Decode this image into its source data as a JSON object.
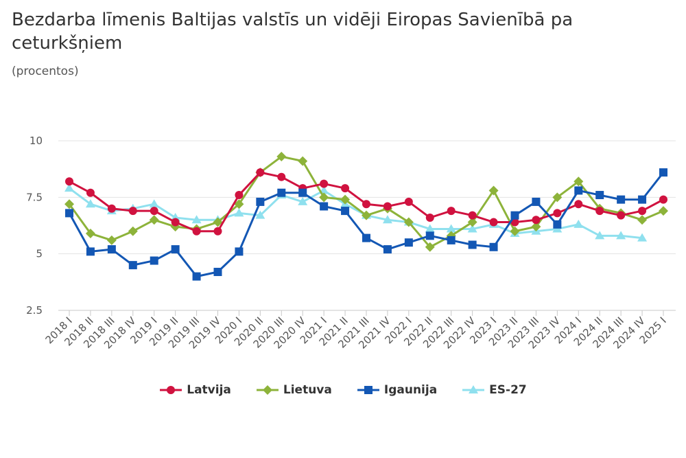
{
  "title": "Bezdarba līmenis Baltijas valstīs un vidēji Eiropas Savienībā pa ceturkšņiem",
  "subtitle": "(procentos)",
  "chart_data": {
    "type": "line",
    "title": "Bezdarba līmenis Baltijas valstīs un vidēji Eiropas Savienībā pa ceturkšņiem",
    "subtitle": "(procentos)",
    "categories": [
      "2018 I",
      "2018 II",
      "2018 III",
      "2018 IV",
      "2019 I",
      "2019 II",
      "2019 III",
      "2019 IV",
      "2020 I",
      "2020 II",
      "2020 III",
      "2020 IV",
      "2021 I",
      "2021 II",
      "2021 III",
      "2021 IV",
      "2022 I",
      "2022 II",
      "2022 III",
      "2022 IV",
      "2023 I",
      "2023 II",
      "2023 III",
      "2023 IV",
      "2024 I",
      "2024 II",
      "2024 III",
      "2024 IV",
      "2025 I"
    ],
    "yticks": [
      "2.5",
      "5",
      "7.5",
      "10"
    ],
    "ylim": [
      2.5,
      10
    ],
    "grid": true,
    "legend_position": "bottom",
    "series": [
      {
        "name": "Latvija",
        "color": "#d0123f",
        "marker": "circle",
        "values": [
          8.2,
          7.7,
          7.0,
          6.9,
          6.9,
          6.4,
          6.0,
          6.0,
          7.6,
          8.6,
          8.4,
          7.9,
          8.1,
          7.9,
          7.2,
          7.1,
          7.3,
          6.6,
          6.9,
          6.7,
          6.4,
          6.4,
          6.5,
          6.8,
          7.2,
          6.9,
          6.7,
          6.9,
          7.4
        ]
      },
      {
        "name": "Lietuva",
        "color": "#8db33a",
        "marker": "diamond",
        "values": [
          7.2,
          5.9,
          5.6,
          6.0,
          6.5,
          6.2,
          6.1,
          6.4,
          7.2,
          8.6,
          9.3,
          9.1,
          7.5,
          7.4,
          6.7,
          7.0,
          6.4,
          5.3,
          5.8,
          6.4,
          7.8,
          6.0,
          6.2,
          7.5,
          8.2,
          7.0,
          6.8,
          6.5,
          6.9
        ]
      },
      {
        "name": "Igaunija",
        "color": "#1357b4",
        "marker": "square",
        "values": [
          6.8,
          5.1,
          5.2,
          4.5,
          4.7,
          5.2,
          4.0,
          4.2,
          5.1,
          7.3,
          7.7,
          7.7,
          7.1,
          6.9,
          5.7,
          5.2,
          5.5,
          5.8,
          5.6,
          5.4,
          5.3,
          6.7,
          7.3,
          6.3,
          7.8,
          7.6,
          7.4,
          7.4,
          8.6
        ]
      },
      {
        "name": "ES-27",
        "color": "#8fe0ee",
        "marker": "triangle",
        "values": [
          7.9,
          7.2,
          6.9,
          7.0,
          7.2,
          6.6,
          6.5,
          6.5,
          6.8,
          6.7,
          7.6,
          7.3,
          7.8,
          7.2,
          6.7,
          6.5,
          6.4,
          6.1,
          6.1,
          6.1,
          6.3,
          5.9,
          6.0,
          6.1,
          6.3,
          5.8,
          5.8,
          5.7,
          null
        ]
      }
    ]
  }
}
